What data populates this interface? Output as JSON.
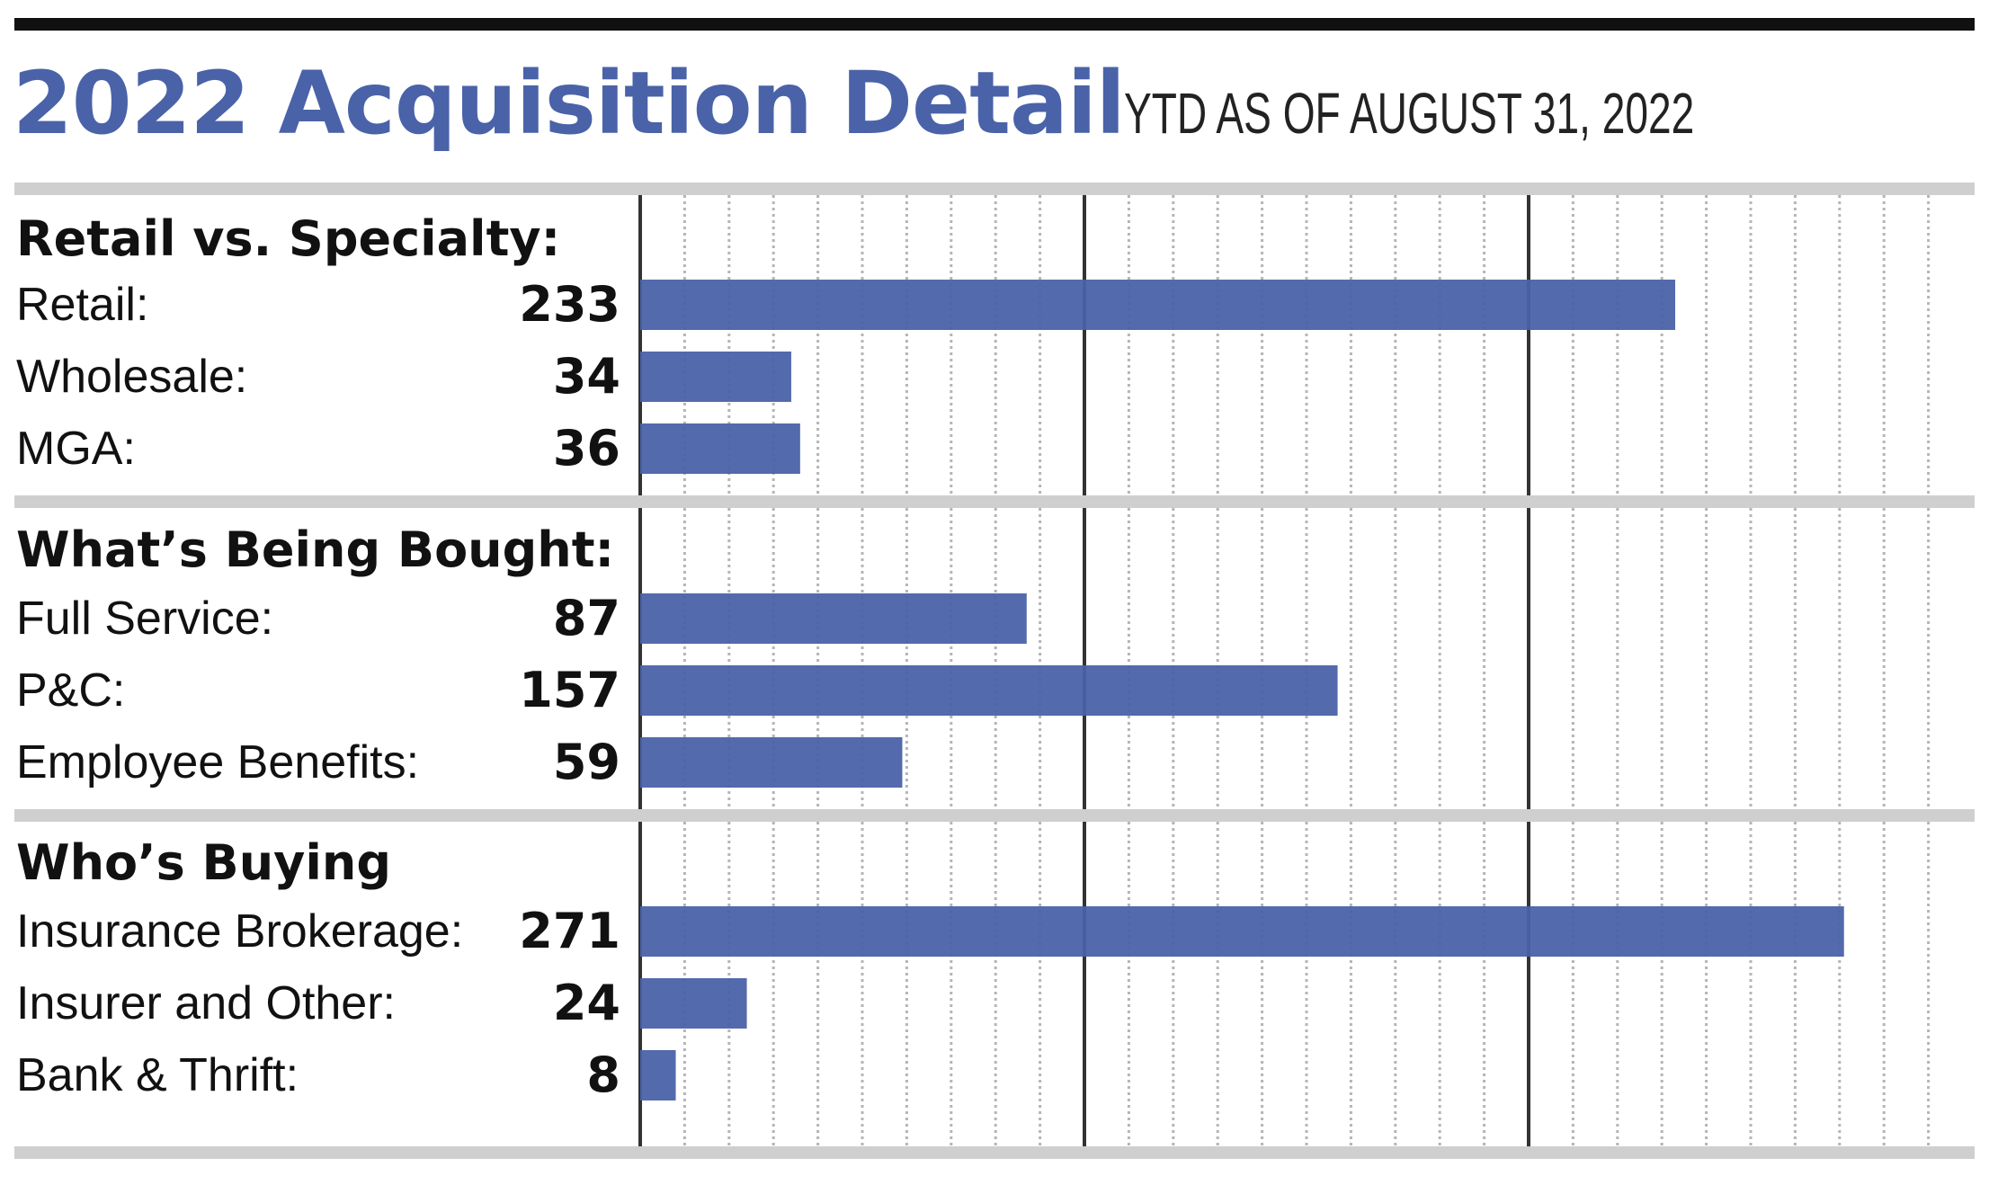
{
  "header": {
    "title": "2022 Acquisition Detail",
    "subtitle": "YTD AS OF AUGUST 31, 2022"
  },
  "colors": {
    "bar": "#4a62a8",
    "title": "#4a62a8",
    "band": "#cfcfcf",
    "major_grid": "#333333",
    "minor_grid": "#b5b5b5"
  },
  "chart_data": {
    "type": "bar",
    "orientation": "horizontal",
    "xlim": [
      0,
      300
    ],
    "grid": true,
    "groups": [
      {
        "heading": "Retail vs. Specialty:",
        "rows": [
          {
            "label": "Retail:",
            "value": 233
          },
          {
            "label": "Wholesale:",
            "value": 34
          },
          {
            "label": "MGA:",
            "value": 36
          }
        ]
      },
      {
        "heading": "What’s Being Bought:",
        "rows": [
          {
            "label": "Full Service:",
            "value": 87
          },
          {
            "label": "P&C:",
            "value": 157
          },
          {
            "label": "Employee Benefits:",
            "value": 59
          }
        ]
      },
      {
        "heading": "Who’s Buying",
        "rows": [
          {
            "label": "Insurance Brokerage:",
            "value": 271
          },
          {
            "label": "Insurer and Other:",
            "value": 24
          },
          {
            "label": "Bank & Thrift:",
            "value": 8
          }
        ]
      }
    ]
  }
}
